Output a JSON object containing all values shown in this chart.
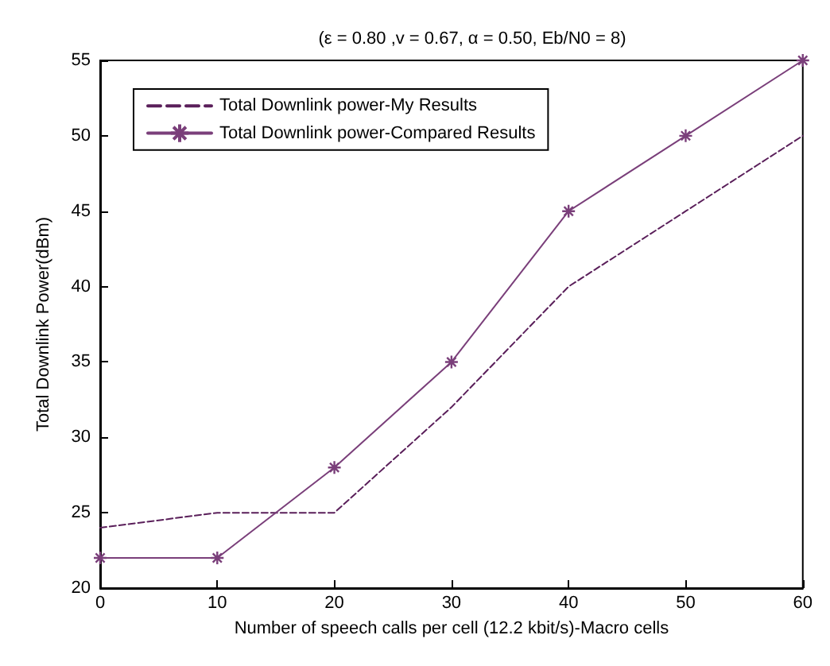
{
  "chart_data": {
    "type": "line",
    "title": "(ε = 0.80 ,v = 0.67, α = 0.50, Eb/N0 = 8)",
    "xlabel": "Number of speech calls per cell (12.2 kbit/s)-Macro cells",
    "ylabel": "Total Downlink Power(dBm)",
    "x": [
      0,
      10,
      20,
      30,
      40,
      50,
      60
    ],
    "series": [
      {
        "name": "Total Downlink power-My Results",
        "color": "#5a1f5a",
        "values": [
          24,
          25,
          25,
          32,
          40,
          45,
          50
        ],
        "line_style": "dashed",
        "marker": "none"
      },
      {
        "name": "Total Downlink power-Compared Results",
        "color": "#7a3f7a",
        "values": [
          22,
          22,
          28,
          35,
          45,
          50,
          55
        ],
        "line_style": "solid",
        "marker": "cross"
      }
    ],
    "xlim": [
      0,
      60
    ],
    "xticks": [
      0,
      10,
      20,
      30,
      40,
      50,
      60
    ],
    "ylim": [
      20,
      55
    ],
    "yticks": [
      20,
      25,
      30,
      35,
      40,
      45,
      50,
      55
    ],
    "grid": false,
    "legend": "top left"
  }
}
